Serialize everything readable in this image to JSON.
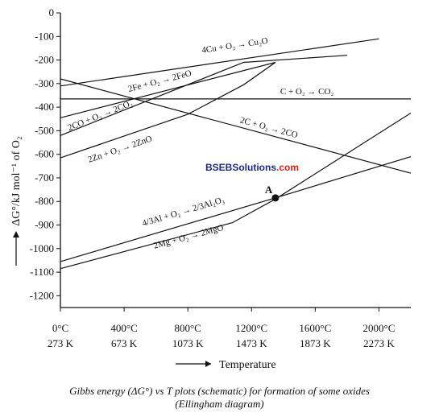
{
  "chart_data": {
    "type": "line",
    "title": "",
    "xlabel": "Temperature",
    "ylabel": "ΔG°/kJ mol⁻¹ of O₂",
    "xlim": [
      0,
      2200
    ],
    "ylim": [
      -1250,
      0
    ],
    "x_ticks_celsius": [
      "0°C",
      "400°C",
      "800°C",
      "1200°C",
      "1600°C",
      "2000°C"
    ],
    "x_ticks_kelvin": [
      "273 K",
      "673 K",
      "1073 K",
      "1473 K",
      "1873 K",
      "2273 K"
    ],
    "y_ticks": [
      "0",
      "-100",
      "-200",
      "-300",
      "-400",
      "-500",
      "-600",
      "-700",
      "-800",
      "-900",
      "-1000",
      "-1100",
      "-1200"
    ],
    "grid": false,
    "series": [
      {
        "name": "4Cu + O₂ → Cu₂O",
        "points": [
          [
            0,
            -310
          ],
          [
            2000,
            -110
          ]
        ]
      },
      {
        "name": "2Fe + O₂ → 2FeO",
        "points": [
          [
            0,
            -445
          ],
          [
            1350,
            -210
          ]
        ]
      },
      {
        "name": "C + O₂ → CO₂",
        "points": [
          [
            0,
            -365
          ],
          [
            2200,
            -365
          ]
        ]
      },
      {
        "name": "2CO + O₂ → 2CO₂",
        "points": [
          [
            0,
            -520
          ],
          [
            1150,
            -210
          ],
          [
            1800,
            -180
          ]
        ]
      },
      {
        "name": "2C + O₂ → 2CO",
        "points": [
          [
            0,
            -280
          ],
          [
            2200,
            -680
          ]
        ]
      },
      {
        "name": "2Zn + O₂ → 2ZnO",
        "points": [
          [
            0,
            -615
          ],
          [
            800,
            -430
          ],
          [
            1150,
            -305
          ],
          [
            1350,
            -210
          ]
        ]
      },
      {
        "name": "4/3Al + O₂ → 2/3Al₂O₃",
        "points": [
          [
            0,
            -1055
          ],
          [
            1350,
            -785
          ],
          [
            2200,
            -610
          ]
        ]
      },
      {
        "name": "2Mg + O₂ → 2MgO",
        "points": [
          [
            0,
            -1085
          ],
          [
            1080,
            -890
          ],
          [
            1350,
            -790
          ],
          [
            2200,
            -425
          ]
        ]
      }
    ],
    "labels": [
      {
        "series": 0,
        "text": "4Cu + O₂ → Cu₂O",
        "x": 890,
        "y": -170
      },
      {
        "series": 1,
        "text": "2Fe + O₂ → 2FeO",
        "x": 430,
        "y": -335
      },
      {
        "series": 2,
        "text": "C + O₂ → CO₂",
        "x": 1380,
        "y": -345
      },
      {
        "series": 3,
        "text": "2CO + O₂ → 2CO₂",
        "x": 55,
        "y": -500
      },
      {
        "series": 4,
        "text": "2C + O₂ → 2CO",
        "x": 1125,
        "y": -465
      },
      {
        "series": 5,
        "text": "2Zn + O₂ → 2ZnO",
        "x": 180,
        "y": -635
      },
      {
        "series": 6,
        "text": "4/3Al + O₂ → 2/3Al₂O₃",
        "x": 520,
        "y": -905
      },
      {
        "series": 7,
        "text": "2Mg + O₂ → 2MgO",
        "x": 590,
        "y": -1000
      }
    ],
    "annotations": [
      {
        "name": "point-A",
        "text": "A",
        "x": 1350,
        "y": -785
      }
    ]
  },
  "watermark": "BSEBSolutions.com",
  "caption": {
    "line1": "Gibbs energy (ΔG°) vs T plots (schematic) for formation of some oxides",
    "line2": "(Ellingham diagram)"
  },
  "colors": {
    "ink": "#111111",
    "watermark_blue": "#1e2a80",
    "watermark_red": "#e0221b"
  }
}
